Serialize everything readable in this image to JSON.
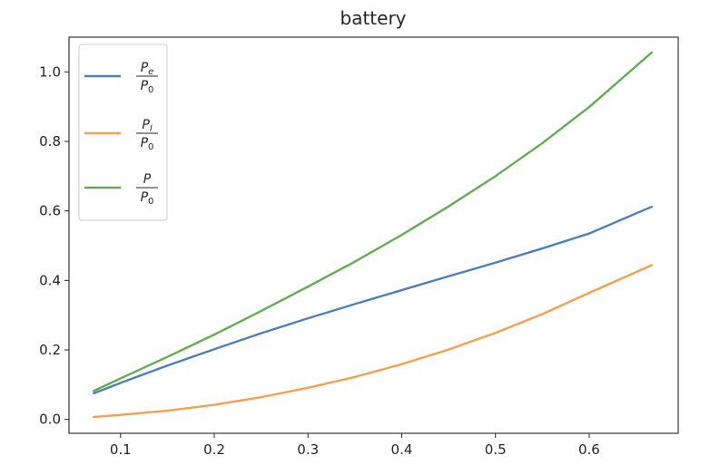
{
  "chart_data": {
    "type": "line",
    "title": "battery",
    "xlabel": "",
    "ylabel": "",
    "xlim": [
      0.045,
      0.695
    ],
    "ylim": [
      -0.04,
      1.1
    ],
    "xticks": [
      0.1,
      0.2,
      0.3,
      0.4,
      0.5,
      0.6
    ],
    "xtick_labels": [
      "0.1",
      "0.2",
      "0.3",
      "0.4",
      "0.5",
      "0.6"
    ],
    "yticks": [
      0.0,
      0.2,
      0.4,
      0.6,
      0.8,
      1.0
    ],
    "ytick_labels": [
      "0.0",
      "0.2",
      "0.4",
      "0.6",
      "0.8",
      "1.0"
    ],
    "grid": false,
    "legend_position": "upper-left",
    "x": [
      0.0714,
      0.1,
      0.15,
      0.2,
      0.25,
      0.3,
      0.35,
      0.4,
      0.45,
      0.5,
      0.55,
      0.6,
      0.6667
    ],
    "series": [
      {
        "legend": {
          "num": "P",
          "num_sub": "e",
          "den": "P",
          "den_sub": "0"
        },
        "color": "#4c80bd",
        "values": [
          0.075,
          0.105,
          0.155,
          0.202,
          0.248,
          0.291,
          0.332,
          0.372,
          0.412,
          0.451,
          0.492,
          0.535,
          0.612
        ]
      },
      {
        "legend": {
          "num": "P",
          "num_sub": "l",
          "den": "P",
          "den_sub": "0"
        },
        "color": "#f5a04a",
        "values": [
          0.007,
          0.013,
          0.025,
          0.042,
          0.064,
          0.091,
          0.122,
          0.159,
          0.201,
          0.249,
          0.303,
          0.364,
          0.444
        ]
      },
      {
        "legend": {
          "num": "P",
          "num_sub": "",
          "den": "P",
          "den_sub": "0"
        },
        "color": "#62ad4f",
        "values": [
          0.082,
          0.118,
          0.18,
          0.244,
          0.312,
          0.382,
          0.454,
          0.531,
          0.613,
          0.7,
          0.795,
          0.899,
          1.056
        ]
      }
    ]
  }
}
